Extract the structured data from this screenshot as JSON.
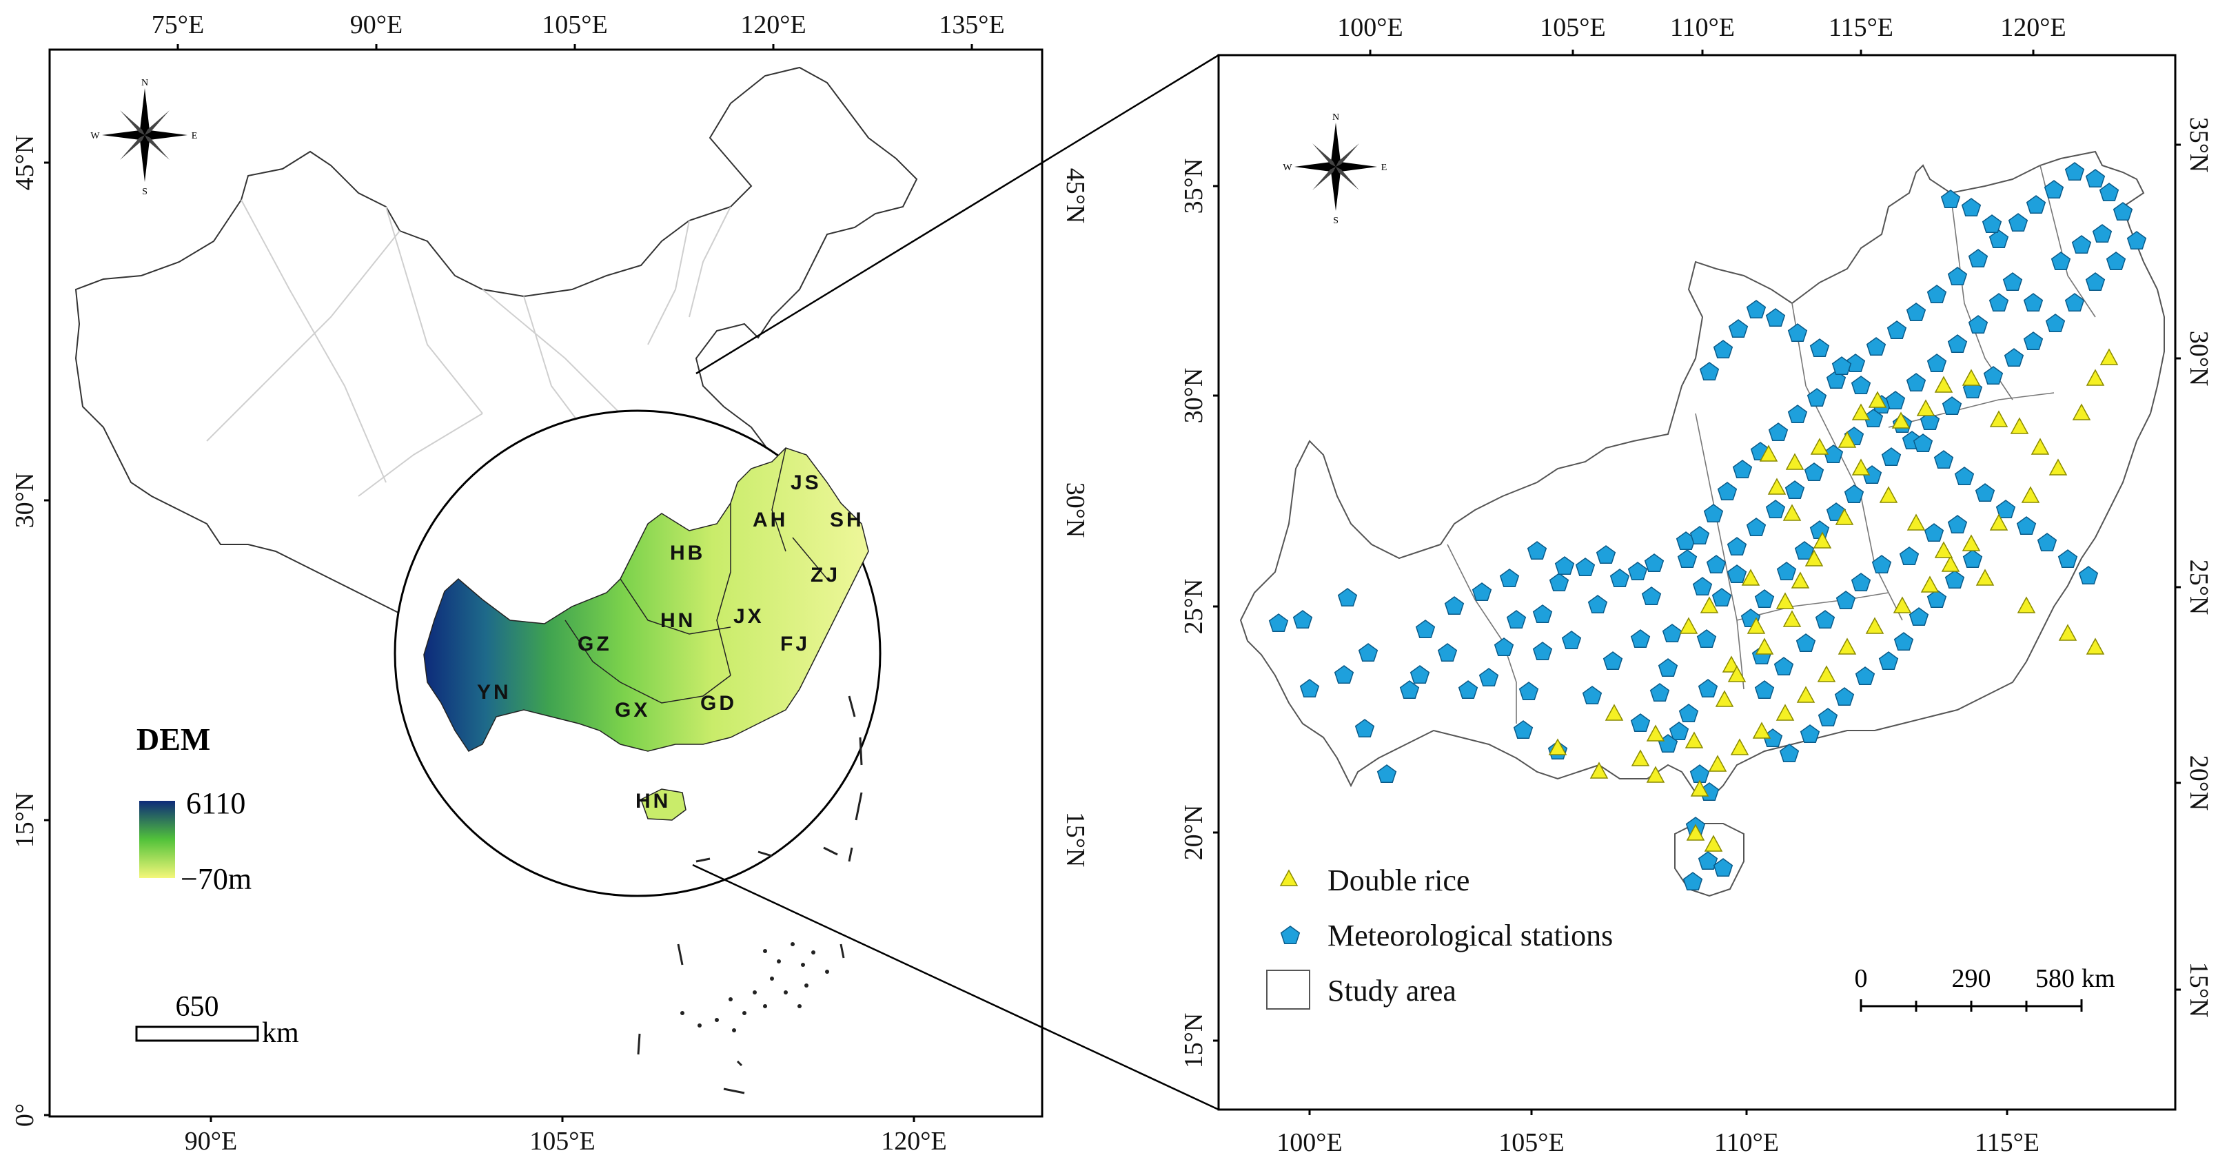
{
  "left_map": {
    "top_lon_ticks": [
      "75°E",
      "90°E",
      "105°E",
      "120°E",
      "135°E"
    ],
    "bottom_lon_ticks": [
      "90°E",
      "105°E",
      "120°E"
    ],
    "left_lat_ticks": [
      "45°N",
      "30°N",
      "15°N",
      "0°"
    ],
    "right_lat_ticks": [
      "45°N",
      "30°N",
      "15°N"
    ],
    "compass": {
      "n": "N",
      "s": "S",
      "e": "E",
      "w": "W"
    },
    "provinces": [
      "JS",
      "SH",
      "AH",
      "HB",
      "ZJ",
      "HN",
      "JX",
      "GZ",
      "FJ",
      "YN",
      "GX",
      "GD",
      "HN"
    ],
    "dem_legend": {
      "title": "DEM",
      "max": "6110",
      "min": "−70m",
      "color_high": "#0d2a7a",
      "color_mid": "#52c23a",
      "color_low": "#f4f77a"
    },
    "scale_bar": {
      "value": "650",
      "unit": "km"
    }
  },
  "right_map": {
    "top_lon_ticks": [
      "100°E",
      "105°E",
      "110°E",
      "115°E",
      "120°E"
    ],
    "bottom_lon_ticks": [
      "100°E",
      "105°E",
      "110°E",
      "115°E"
    ],
    "left_lat_ticks": [
      "35°N",
      "30°N",
      "25°N",
      "20°N",
      "15°N"
    ],
    "right_lat_ticks": [
      "35°N",
      "30°N",
      "25°N",
      "20°N",
      "15°N"
    ],
    "compass": {
      "n": "N",
      "s": "S",
      "e": "E",
      "w": "W"
    },
    "legend": {
      "double_rice": "Double rice",
      "stations": "Meteorological stations",
      "study_area": "Study area",
      "triangle_color": "#f5f023",
      "pentagon_color": "#1ea0dc"
    },
    "scale_bar": {
      "t0": "0",
      "t1": "290",
      "t2": "580",
      "unit": "km"
    }
  }
}
